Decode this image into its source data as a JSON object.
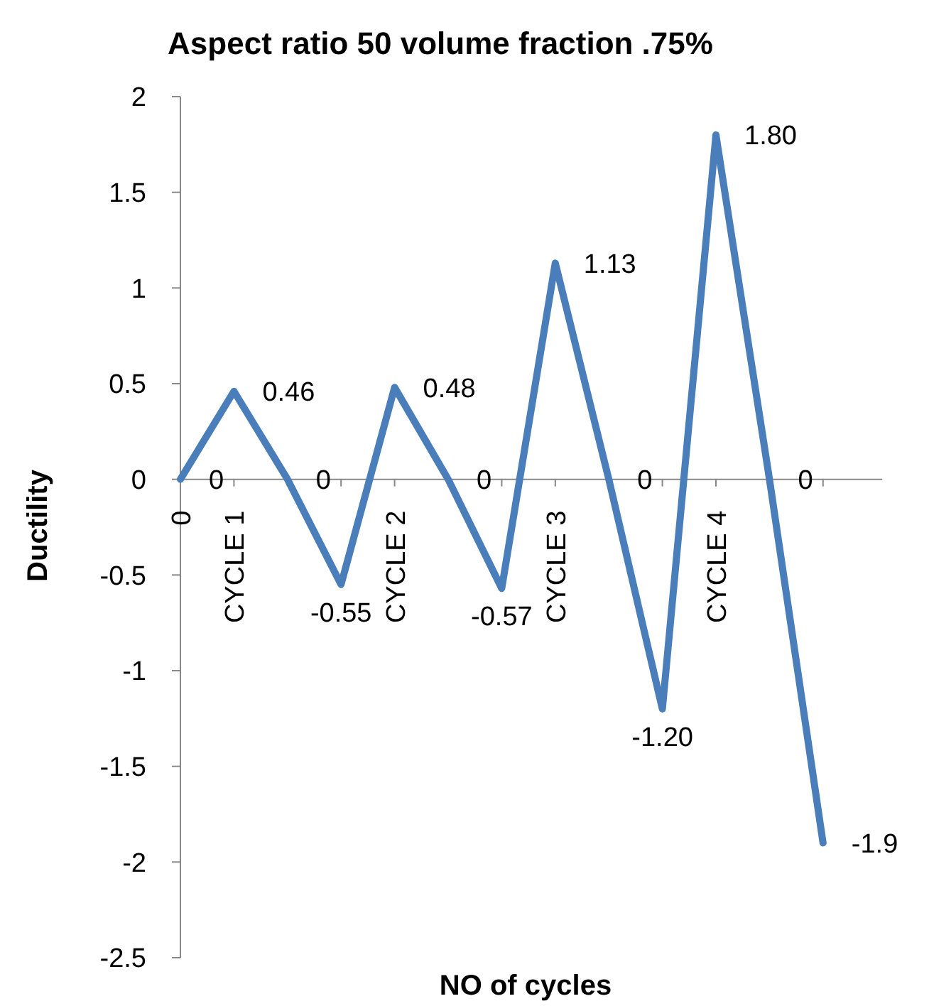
{
  "chart_data": {
    "type": "line",
    "title": "Aspect ratio 50  volume fraction .75%",
    "xlabel": "NO of cycles",
    "ylabel": "Ductility",
    "categories": [
      "0",
      "CYCLE 1",
      null,
      null,
      "CYCLE 2",
      null,
      null,
      "CYCLE 3",
      null,
      null,
      "CYCLE 4",
      null,
      null
    ],
    "series": [
      {
        "color": "#4a7ebb",
        "values": [
          0,
          0.46,
          0,
          -0.55,
          0.48,
          0,
          -0.57,
          1.13,
          0,
          -1.2,
          1.8,
          0,
          -1.9
        ],
        "value_labels": [
          "0",
          "0.46",
          "0",
          "-0.55",
          "0.48",
          "0",
          "-0.57",
          "1.13",
          "0",
          "-1.20",
          "1.80",
          "0",
          "-1.9"
        ]
      }
    ],
    "ylim": [
      -2.5,
      2
    ],
    "yticks": [
      -2.5,
      -2,
      -1.5,
      -1,
      -0.5,
      0,
      0.5,
      1,
      1.5,
      2
    ],
    "grid": false,
    "marker": "none",
    "line_style": "solid"
  }
}
